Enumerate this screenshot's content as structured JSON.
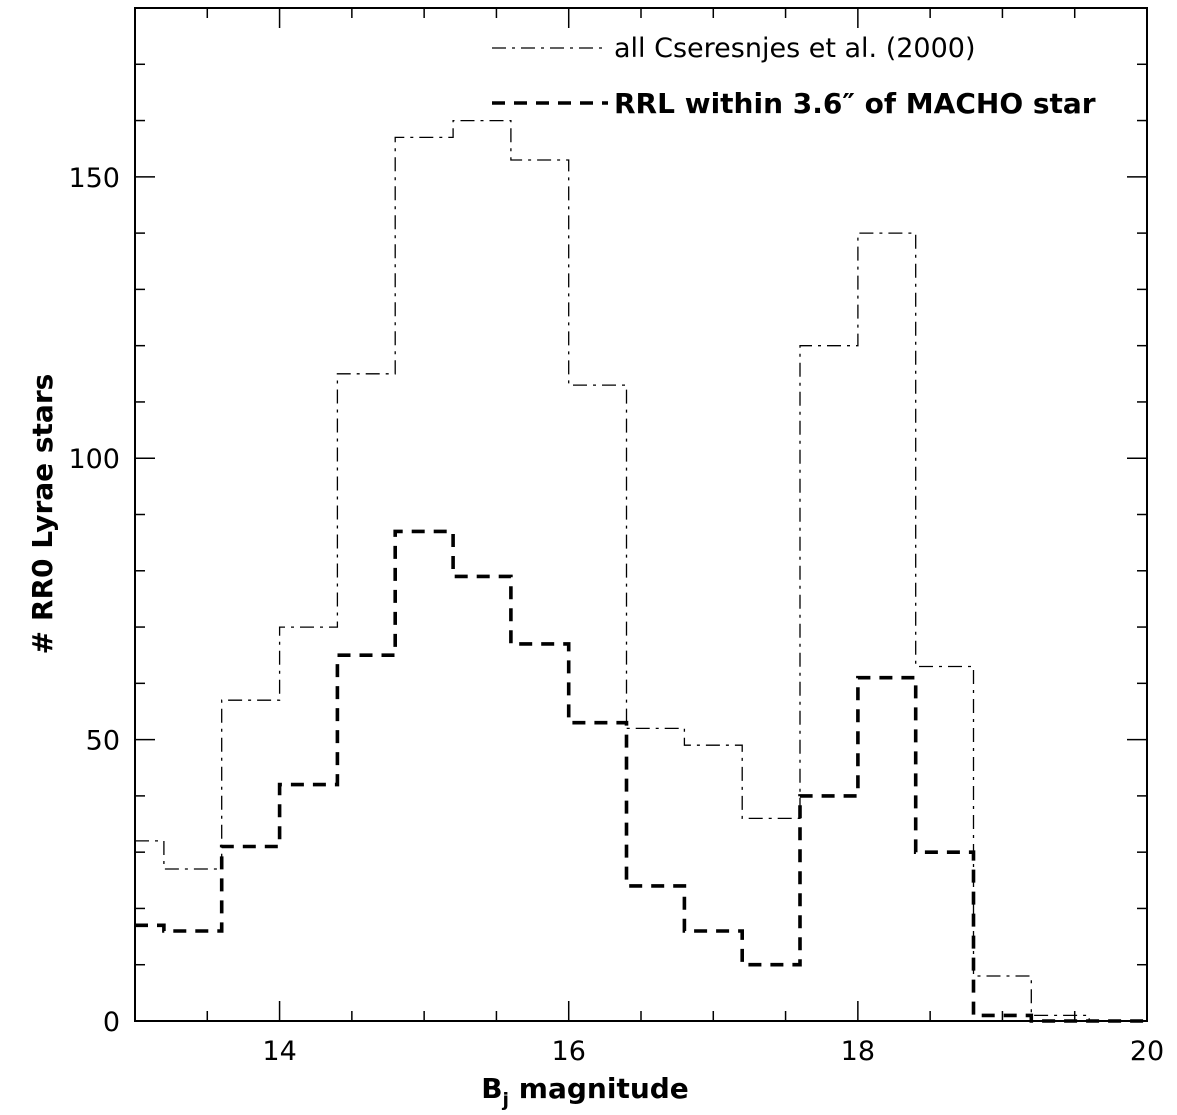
{
  "chart_data": {
    "type": "line",
    "step": true,
    "xlabel": "B",
    "xlabel_subscript": "j",
    "xlabel_rest": " magnitude",
    "ylabel": "# RR0 Lyrae stars",
    "xlim": [
      13,
      20
    ],
    "ylim": [
      0,
      180
    ],
    "xticks": [
      14,
      16,
      18,
      20
    ],
    "yticks": [
      0,
      50,
      100,
      150
    ],
    "xtick_labels": [
      "14",
      "16",
      "18",
      "20"
    ],
    "ytick_labels": [
      "0",
      "50",
      "100",
      "150"
    ],
    "x_minor_step": 0.5,
    "y_minor_step": 10,
    "grid": false,
    "legend_position": "top-right",
    "bin_edges": [
      13.0,
      13.2,
      13.6,
      14.0,
      14.4,
      14.8,
      15.2,
      15.6,
      16.0,
      16.4,
      16.8,
      17.2,
      17.6,
      18.0,
      18.4,
      18.8,
      19.2,
      19.6,
      20.0
    ],
    "series": [
      {
        "name": "all Cseresnjes et al. (2000)",
        "style": "dash-dot",
        "color": "#000000",
        "values": [
          32,
          27,
          57,
          70,
          115,
          157,
          160,
          153,
          113,
          52,
          49,
          36,
          120,
          140,
          63,
          8,
          1,
          0
        ]
      },
      {
        "name": "RRL within 3.6″ of MACHO star",
        "style": "dashed",
        "color": "#000000",
        "values": [
          17,
          16,
          31,
          42,
          65,
          87,
          79,
          67,
          53,
          24,
          16,
          10,
          40,
          61,
          30,
          1,
          0,
          0
        ]
      }
    ]
  }
}
